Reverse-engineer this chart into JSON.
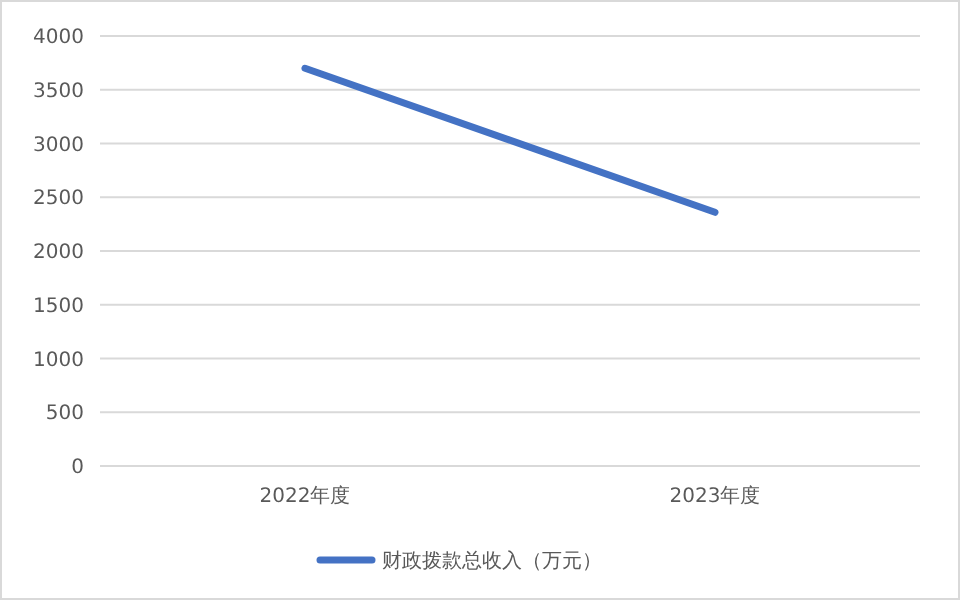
{
  "chart_data": {
    "type": "line",
    "categories": [
      "2022年度",
      "2023年度"
    ],
    "series": [
      {
        "name": "财政拨款总收入（万元）",
        "color": "#4472c4",
        "values": [
          3700,
          2360
        ]
      }
    ],
    "ylim": [
      0,
      4000
    ],
    "yticks": [
      0,
      500,
      1000,
      1500,
      2000,
      2500,
      3000,
      3500,
      4000
    ],
    "grid": "y",
    "legend": "bottom",
    "marker": "none",
    "line_style": "solid"
  }
}
